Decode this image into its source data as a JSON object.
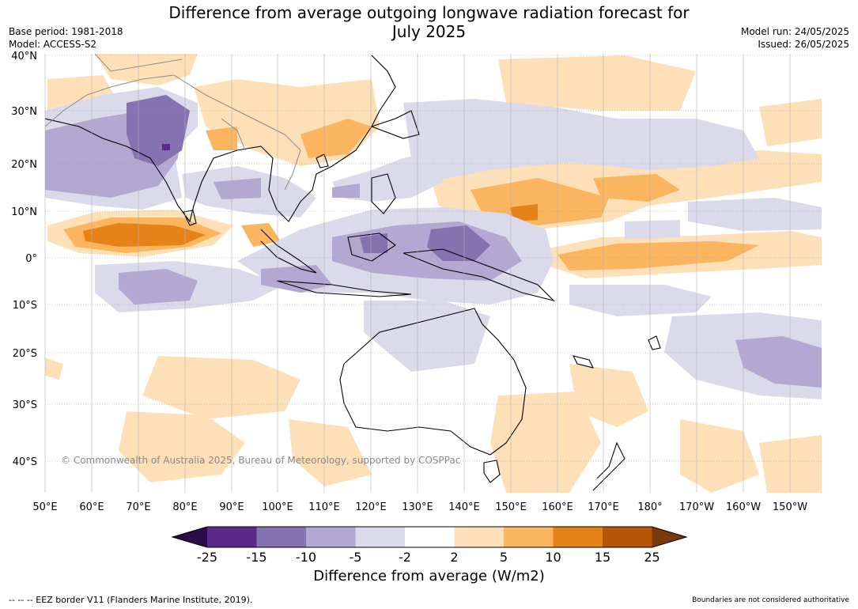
{
  "title_line1": "Difference from average outgoing longwave radiation forecast for",
  "title_line2": "July 2025",
  "meta_left": [
    "Base period: 1981-2018",
    "Model: ACCESS-S2"
  ],
  "meta_right": [
    "Model run: 24/05/2025",
    "Issued: 26/05/2025"
  ],
  "lat_labels": [
    "40°N",
    "30°N",
    "20°N",
    "10°N",
    "0°",
    "10°S",
    "20°S",
    "30°S",
    "40°S"
  ],
  "lon_labels": [
    "50°E",
    "60°E",
    "70°E",
    "80°E",
    "90°E",
    "100°E",
    "110°E",
    "120°E",
    "130°E",
    "140°E",
    "150°E",
    "160°E",
    "170°E",
    "180°",
    "170°W",
    "160°W",
    "150°W"
  ],
  "copyright": "© Commonwealth of Australia 2025, Bureau of Meteorology, supported by COSPPac",
  "colorbar": {
    "title": "Difference from average (W/m2)",
    "ticks": [
      "-25",
      "-15",
      "-10",
      "-5",
      "-2",
      "2",
      "5",
      "10",
      "15",
      "25"
    ],
    "colors": [
      "#2d0a4a",
      "#5a2a8a",
      "#8572b0",
      "#b2a8d2",
      "#dadaea",
      "#ffffff",
      "#fde0b8",
      "#fbb55e",
      "#e58318",
      "#b65708",
      "#7a3a0a"
    ]
  },
  "footer_left": "--  --  -- EEZ border V11 (Flanders Marine Institute, 2019).",
  "footer_right": "Boundaries are not considered authoritative"
}
